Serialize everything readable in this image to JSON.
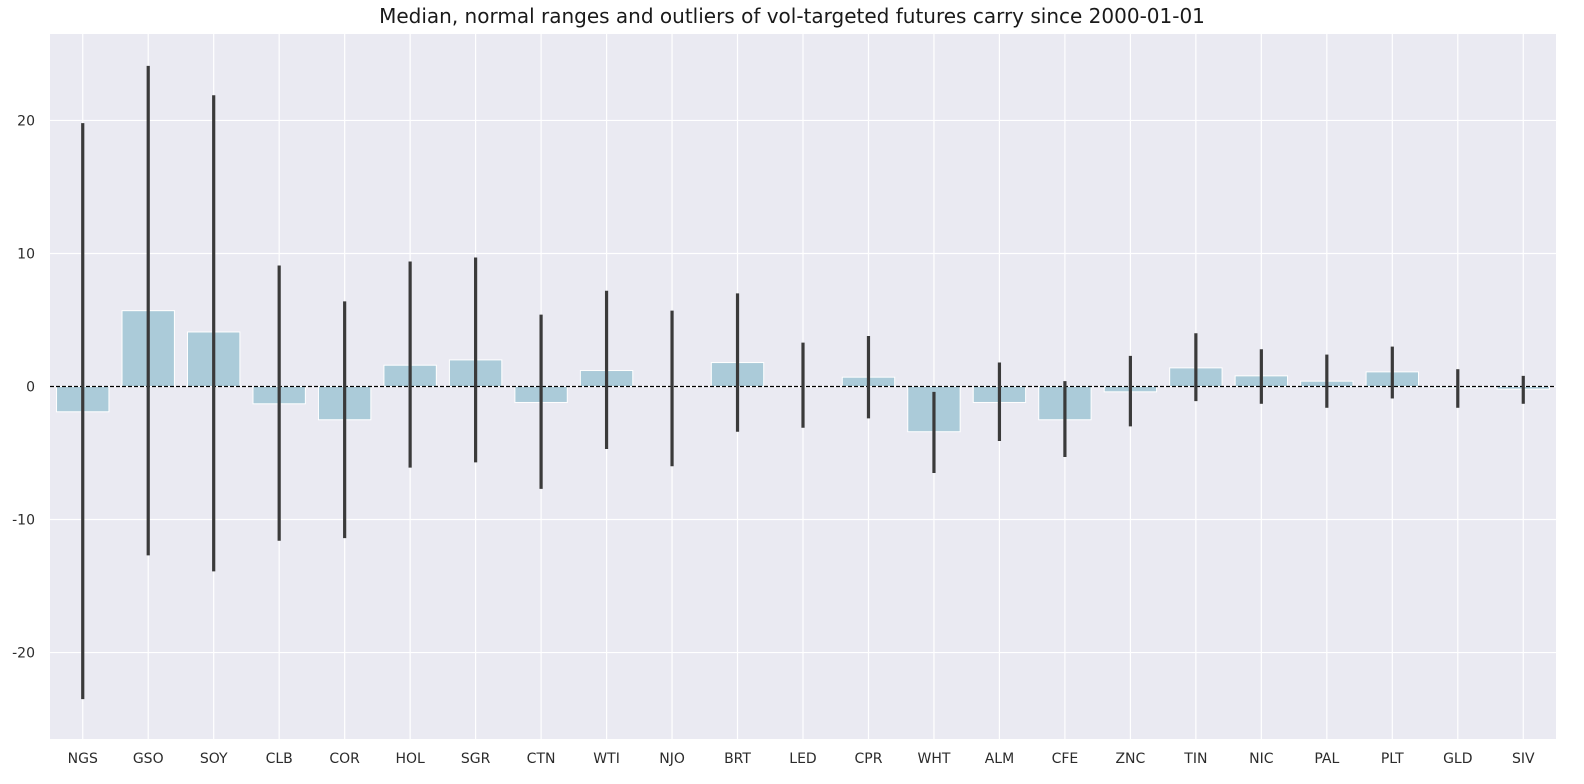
{
  "chart_data": {
    "type": "bar",
    "title": "Median, normal ranges and outliers of vol-targeted futures carry since 2000-01-01",
    "xlabel": "",
    "ylabel": "",
    "categories": [
      "NGS",
      "GSO",
      "SOY",
      "CLB",
      "COR",
      "HOL",
      "SGR",
      "CTN",
      "WTI",
      "NJO",
      "BRT",
      "LED",
      "CPR",
      "WHT",
      "ALM",
      "CFE",
      "ZNC",
      "TIN",
      "NIC",
      "PAL",
      "PLT",
      "GLD",
      "SIV"
    ],
    "values": [
      -1.9,
      5.7,
      4.1,
      -1.3,
      -2.5,
      1.6,
      2.0,
      -1.2,
      1.2,
      0.0,
      1.8,
      0.0,
      0.7,
      -3.4,
      -1.2,
      -2.5,
      -0.4,
      1.4,
      0.8,
      0.4,
      1.1,
      -0.1,
      -0.2
    ],
    "error_range": [
      [
        -23.5,
        19.8
      ],
      [
        -12.7,
        24.1
      ],
      [
        -13.9,
        21.9
      ],
      [
        -11.6,
        9.1
      ],
      [
        -11.4,
        6.4
      ],
      [
        -6.1,
        9.4
      ],
      [
        -5.7,
        9.7
      ],
      [
        -7.7,
        5.4
      ],
      [
        -4.7,
        7.2
      ],
      [
        -6.0,
        5.7
      ],
      [
        -3.4,
        7.0
      ],
      [
        -3.1,
        3.3
      ],
      [
        -2.4,
        3.8
      ],
      [
        -6.5,
        -0.4
      ],
      [
        -4.1,
        1.8
      ],
      [
        -5.3,
        0.4
      ],
      [
        -3.0,
        2.3
      ],
      [
        -1.1,
        4.0
      ],
      [
        -1.3,
        2.8
      ],
      [
        -1.6,
        2.4
      ],
      [
        -0.9,
        3.0
      ],
      [
        -1.6,
        1.3
      ],
      [
        -1.3,
        0.8
      ]
    ],
    "ylim": [
      -26.5,
      26.5
    ],
    "yticks": [
      -20,
      -10,
      0,
      10,
      20
    ],
    "reference_line": 0,
    "grid": true,
    "colors": {
      "bar": "#abcbd9",
      "bar_edge": "#ffffff",
      "error_bar": "#3a3a3a",
      "background": "#eaeaf2",
      "grid": "#ffffff",
      "reference_line": "#000000"
    }
  }
}
